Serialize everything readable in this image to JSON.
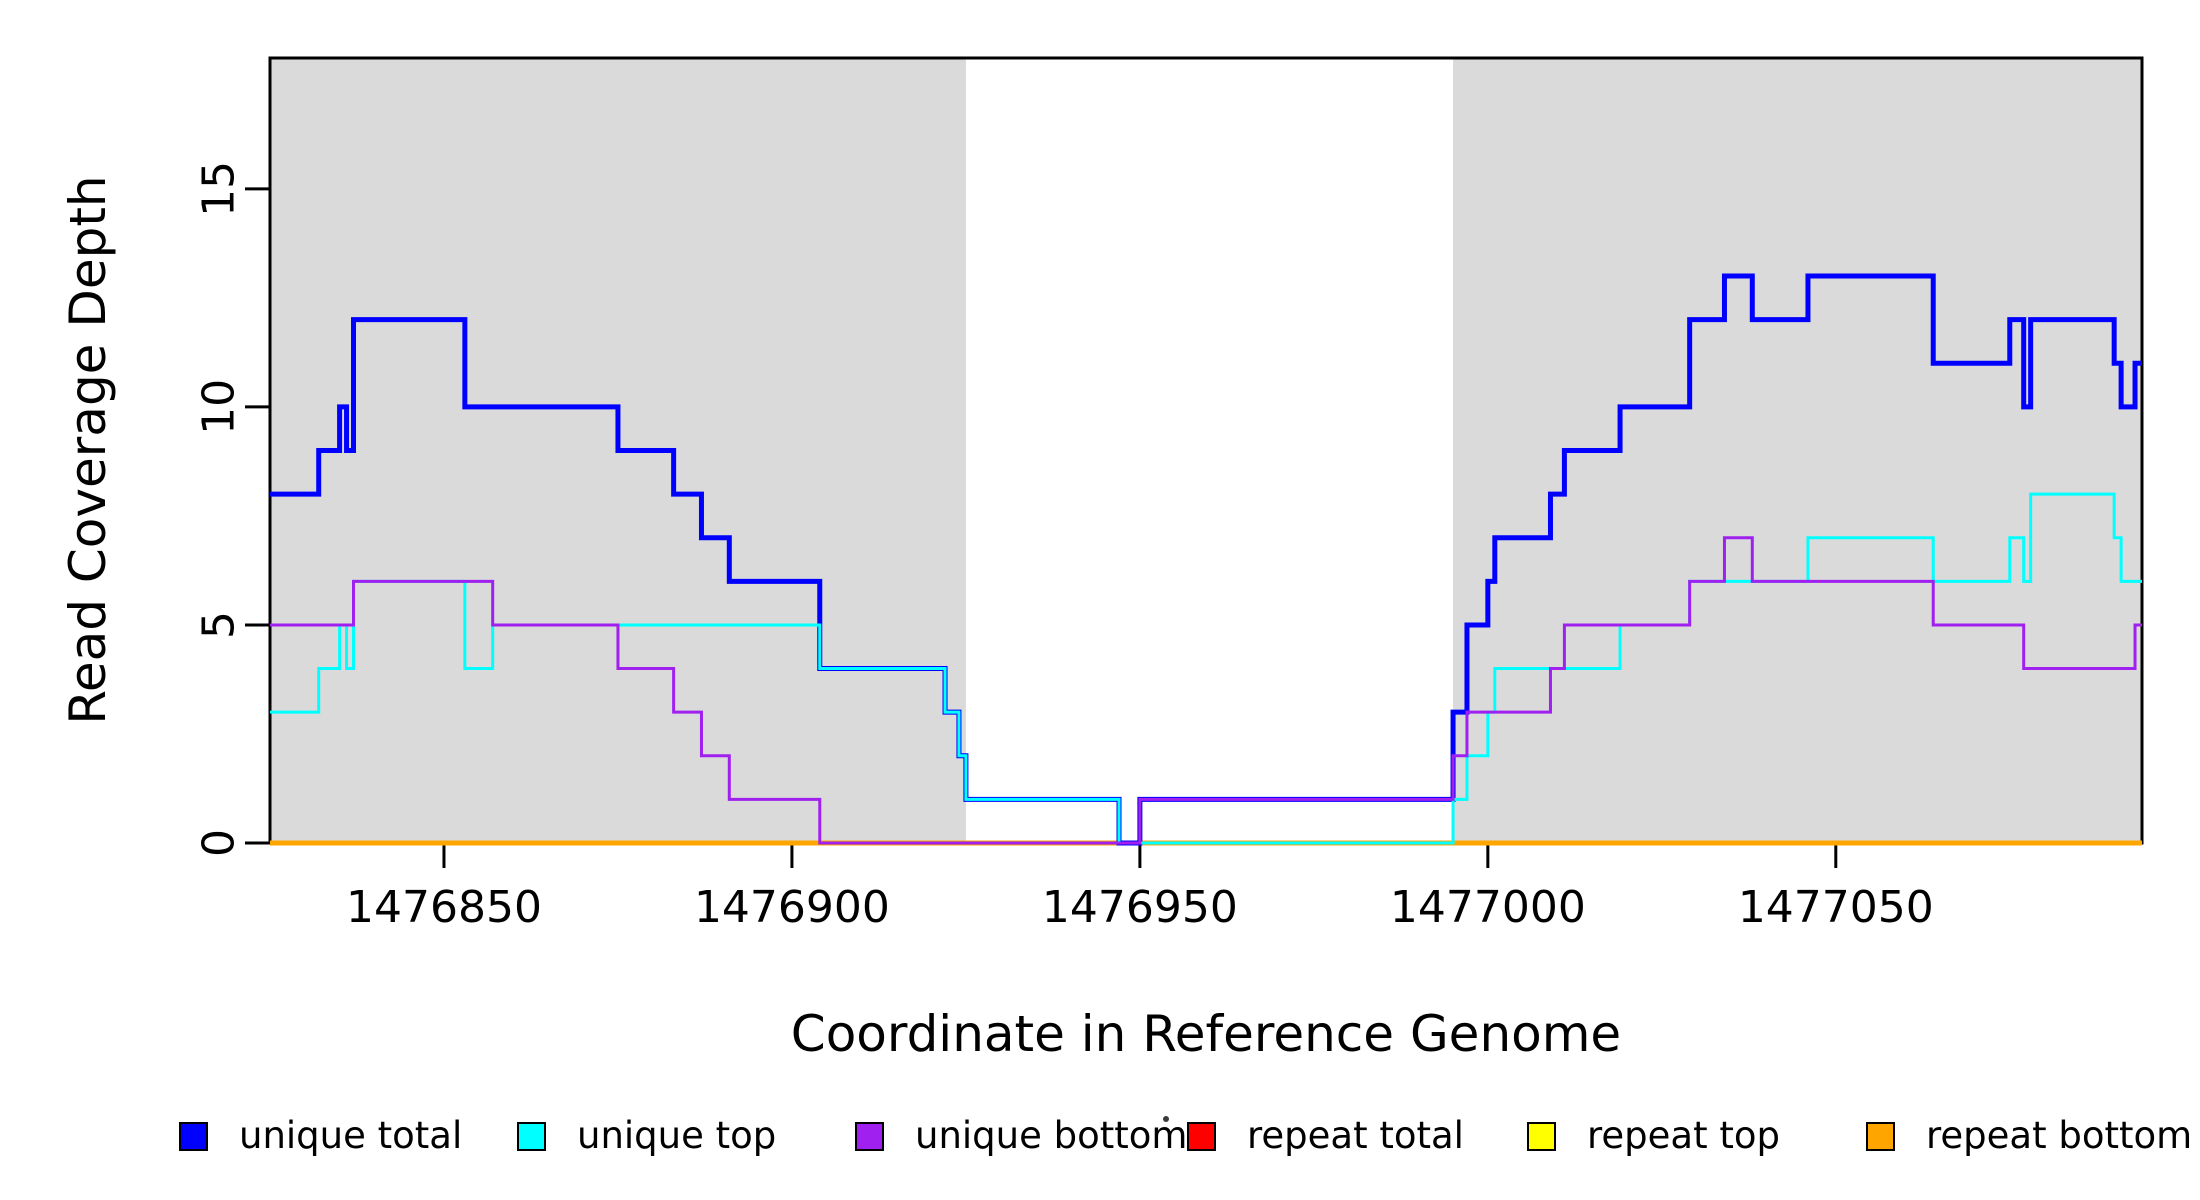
{
  "chart_data": {
    "type": "line",
    "subtype": "step",
    "title": "",
    "xlabel": "Coordinate in Reference Genome",
    "ylabel": "Read Coverage Depth",
    "xlim": [
      1476825,
      1477094
    ],
    "ylim": [
      0,
      18
    ],
    "x_ticks": [
      1476850,
      1476900,
      1476950,
      1477000,
      1477050
    ],
    "y_ticks": [
      0,
      5,
      10,
      15
    ],
    "grid": false,
    "background_color": "#FFFFFF",
    "plot_border_color": "#000000",
    "shaded_regions": {
      "color": "#DADADA",
      "ranges": [
        [
          1476825,
          1476925
        ],
        [
          1476995,
          1477094
        ]
      ]
    },
    "legend_position": "bottom",
    "series": [
      {
        "name": "unique total",
        "color": "#0000FF",
        "line_width": 5,
        "step_points": [
          [
            1476825,
            8
          ],
          [
            1476832,
            9
          ],
          [
            1476835,
            10
          ],
          [
            1476836,
            9
          ],
          [
            1476837,
            12
          ],
          [
            1476853,
            10
          ],
          [
            1476875,
            9
          ],
          [
            1476883,
            8
          ],
          [
            1476887,
            7
          ],
          [
            1476891,
            6
          ],
          [
            1476904,
            4
          ],
          [
            1476922,
            3
          ],
          [
            1476924,
            2
          ],
          [
            1476925,
            1
          ],
          [
            1476947,
            0
          ],
          [
            1476950,
            1
          ],
          [
            1476995,
            3
          ],
          [
            1476997,
            5
          ],
          [
            1477000,
            6
          ],
          [
            1477001,
            7
          ],
          [
            1477009,
            8
          ],
          [
            1477011,
            9
          ],
          [
            1477019,
            10
          ],
          [
            1477029,
            12
          ],
          [
            1477034,
            13
          ],
          [
            1477038,
            12
          ],
          [
            1477046,
            13
          ],
          [
            1477064,
            11
          ],
          [
            1477075,
            12
          ],
          [
            1477077,
            10
          ],
          [
            1477078,
            12
          ],
          [
            1477090,
            11
          ],
          [
            1477091,
            10
          ],
          [
            1477093,
            11
          ]
        ]
      },
      {
        "name": "unique top",
        "color": "#00FFFF",
        "line_width": 3,
        "step_points": [
          [
            1476825,
            3
          ],
          [
            1476832,
            4
          ],
          [
            1476835,
            5
          ],
          [
            1476836,
            4
          ],
          [
            1476837,
            6
          ],
          [
            1476853,
            4
          ],
          [
            1476857,
            5
          ],
          [
            1476904,
            4
          ],
          [
            1476922,
            3
          ],
          [
            1476924,
            2
          ],
          [
            1476925,
            1
          ],
          [
            1476947,
            0
          ],
          [
            1476995,
            1
          ],
          [
            1476997,
            2
          ],
          [
            1477000,
            3
          ],
          [
            1477001,
            4
          ],
          [
            1477019,
            5
          ],
          [
            1477029,
            6
          ],
          [
            1477046,
            7
          ],
          [
            1477064,
            6
          ],
          [
            1477075,
            7
          ],
          [
            1477077,
            6
          ],
          [
            1477078,
            8
          ],
          [
            1477090,
            7
          ],
          [
            1477091,
            6
          ]
        ]
      },
      {
        "name": "unique bottom",
        "color": "#A020F0",
        "line_width": 3,
        "step_points": [
          [
            1476825,
            5
          ],
          [
            1476837,
            6
          ],
          [
            1476857,
            5
          ],
          [
            1476875,
            4
          ],
          [
            1476883,
            3
          ],
          [
            1476887,
            2
          ],
          [
            1476891,
            1
          ],
          [
            1476904,
            0
          ],
          [
            1476950,
            1
          ],
          [
            1476995,
            2
          ],
          [
            1476997,
            3
          ],
          [
            1477009,
            4
          ],
          [
            1477011,
            5
          ],
          [
            1477029,
            6
          ],
          [
            1477034,
            7
          ],
          [
            1477038,
            6
          ],
          [
            1477064,
            5
          ],
          [
            1477077,
            4
          ],
          [
            1477093,
            5
          ]
        ]
      },
      {
        "name": "repeat total",
        "color": "#FF0000",
        "line_width": 3,
        "step_points": [
          [
            1476825,
            0
          ]
        ]
      },
      {
        "name": "repeat top",
        "color": "#FFFF00",
        "line_width": 3,
        "step_points": [
          [
            1476825,
            0
          ]
        ]
      },
      {
        "name": "repeat bottom",
        "color": "#FFA500",
        "line_width": 5,
        "step_points": [
          [
            1476825,
            0
          ]
        ]
      }
    ],
    "legend": {
      "items": [
        {
          "label": "unique total",
          "color": "#0000FF"
        },
        {
          "label": "unique top",
          "color": "#00FFFF"
        },
        {
          "label": "unique bottom",
          "color": "#A020F0"
        },
        {
          "label": "repeat total",
          "color": "#FF0000"
        },
        {
          "label": "repeat top",
          "color": "#FFFF00"
        },
        {
          "label": "repeat bottom",
          "color": "#FFA500"
        }
      ]
    }
  }
}
